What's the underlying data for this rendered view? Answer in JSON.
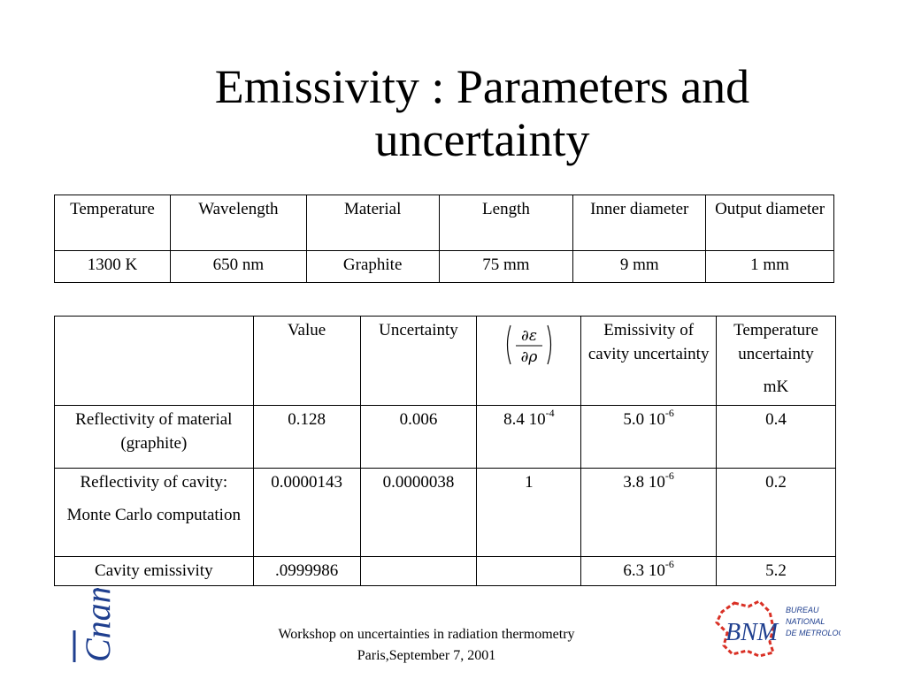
{
  "slide": {
    "title_line1": "Emissivity : Parameters and",
    "title_line2": "uncertainty"
  },
  "params_table": {
    "headers": [
      "Temperature",
      "Wavelength",
      "Material",
      "Length",
      "Inner diameter",
      "Output diameter"
    ],
    "values": [
      "1300 K",
      "650 nm",
      "Graphite",
      "75 mm",
      "9 mm",
      "1 mm"
    ]
  },
  "uncert_table": {
    "headers": {
      "blank": "",
      "value": "Value",
      "uncertainty": "Uncertainty",
      "partial_num": "∂ε",
      "partial_den": "∂ρ",
      "cavity_unc": "Emissivity of cavity uncertainty",
      "temp_unc": "Temperature uncertainty",
      "temp_unit": "mK"
    },
    "rows": [
      {
        "label": "Reflectivity of material (graphite)",
        "label_sub": "",
        "value": "0.128",
        "uncertainty": "0.006",
        "deriv_base": "8.4 10",
        "deriv_exp": "-4",
        "cav_base": "5.0 10",
        "cav_exp": "-6",
        "temp": "0.4"
      },
      {
        "label": "Reflectivity of cavity:",
        "label_sub": "Monte Carlo computation",
        "value": "0.0000143",
        "uncertainty": "0.0000038",
        "deriv_base": "1",
        "deriv_exp": "",
        "cav_base": "3.8 10",
        "cav_exp": "-6",
        "temp": "0.2"
      },
      {
        "label": "Cavity emissivity",
        "label_sub": "",
        "value": ".0999986",
        "uncertainty": "",
        "deriv_base": "",
        "deriv_exp": "",
        "cav_base": "6.3 10",
        "cav_exp": "-6",
        "temp": "5.2"
      }
    ]
  },
  "footer": {
    "line1": "Workshop on uncertainties in radiation thermometry",
    "line2": "Paris,September 7, 2001"
  },
  "logos": {
    "cnam_text": "Cnam",
    "bnm_text": "BNM",
    "bnm_sub1": "BUREAU",
    "bnm_sub2": "NATIONAL",
    "bnm_sub3": "DE METROLOGIE",
    "cnam_color": "#1f3f8f",
    "bnm_color": "#1f3f8f",
    "map_outline_color": "#d93025"
  }
}
